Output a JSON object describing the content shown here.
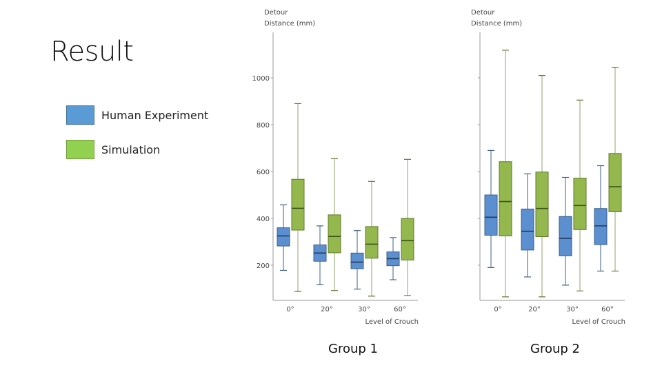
{
  "slide": {
    "title": "Result"
  },
  "legend": [
    {
      "label": "Human Experiment",
      "color": "#5b9bd5",
      "border": "#41719c"
    },
    {
      "label": "Simulation",
      "color": "#92d050",
      "border": "#6fa03a"
    }
  ],
  "colors": {
    "human_fill": "#5b8fd0",
    "human_stroke": "#3e5f8a",
    "sim_fill": "#94b84d",
    "sim_stroke": "#5e7a2a",
    "axis": "#9a9a9a",
    "whisker_human": "#3e5f8a",
    "whisker_sim": "#8fa36a"
  },
  "chart_data": [
    {
      "type": "boxplot",
      "caption": "Group 1",
      "ylabel": [
        "Detour",
        "Distance (mm)"
      ],
      "xlabel": "Level of Crouch",
      "categories": [
        "0°",
        "20°",
        "30°",
        "60°"
      ],
      "yticks": [
        200,
        400,
        600,
        800,
        1000
      ],
      "ylim": [
        40,
        1140
      ],
      "series": [
        {
          "name": "Human Experiment",
          "boxes": [
            {
              "min": 178,
              "q1": 282,
              "median": 325,
              "q3": 360,
              "max": 458
            },
            {
              "min": 117,
              "q1": 217,
              "median": 252,
              "q3": 287,
              "max": 368
            },
            {
              "min": 98,
              "q1": 185,
              "median": 213,
              "q3": 252,
              "max": 348
            },
            {
              "min": 138,
              "q1": 198,
              "median": 228,
              "q3": 257,
              "max": 318
            }
          ]
        },
        {
          "name": "Simulation",
          "boxes": [
            {
              "min": 88,
              "q1": 350,
              "median": 443,
              "q3": 567,
              "max": 890
            },
            {
              "min": 92,
              "q1": 253,
              "median": 323,
              "q3": 415,
              "max": 655
            },
            {
              "min": 68,
              "q1": 230,
              "median": 290,
              "q3": 365,
              "max": 558
            },
            {
              "min": 70,
              "q1": 222,
              "median": 305,
              "q3": 400,
              "max": 652
            }
          ]
        }
      ]
    },
    {
      "type": "boxplot",
      "caption": "Group 2",
      "ylabel": [
        "Detour",
        "Distance (mm)"
      ],
      "xlabel": "Level of Crouch",
      "categories": [
        "0°",
        "20°",
        "30°",
        "60°"
      ],
      "yticks": [
        200,
        400,
        600,
        800,
        1000
      ],
      "ylim": [
        40,
        1140
      ],
      "series": [
        {
          "name": "Human Experiment",
          "boxes": [
            {
              "min": 190,
              "q1": 328,
              "median": 405,
              "q3": 500,
              "max": 690
            },
            {
              "min": 150,
              "q1": 265,
              "median": 345,
              "q3": 440,
              "max": 590
            },
            {
              "min": 115,
              "q1": 240,
              "median": 315,
              "q3": 408,
              "max": 575
            },
            {
              "min": 175,
              "q1": 288,
              "median": 368,
              "q3": 442,
              "max": 625
            }
          ]
        },
        {
          "name": "Simulation",
          "boxes": [
            {
              "min": 65,
              "q1": 325,
              "median": 472,
              "q3": 642,
              "max": 1118
            },
            {
              "min": 65,
              "q1": 322,
              "median": 442,
              "q3": 598,
              "max": 1010
            },
            {
              "min": 90,
              "q1": 352,
              "median": 455,
              "q3": 572,
              "max": 905
            },
            {
              "min": 175,
              "q1": 428,
              "median": 535,
              "q3": 677,
              "max": 1045
            }
          ]
        }
      ]
    }
  ]
}
